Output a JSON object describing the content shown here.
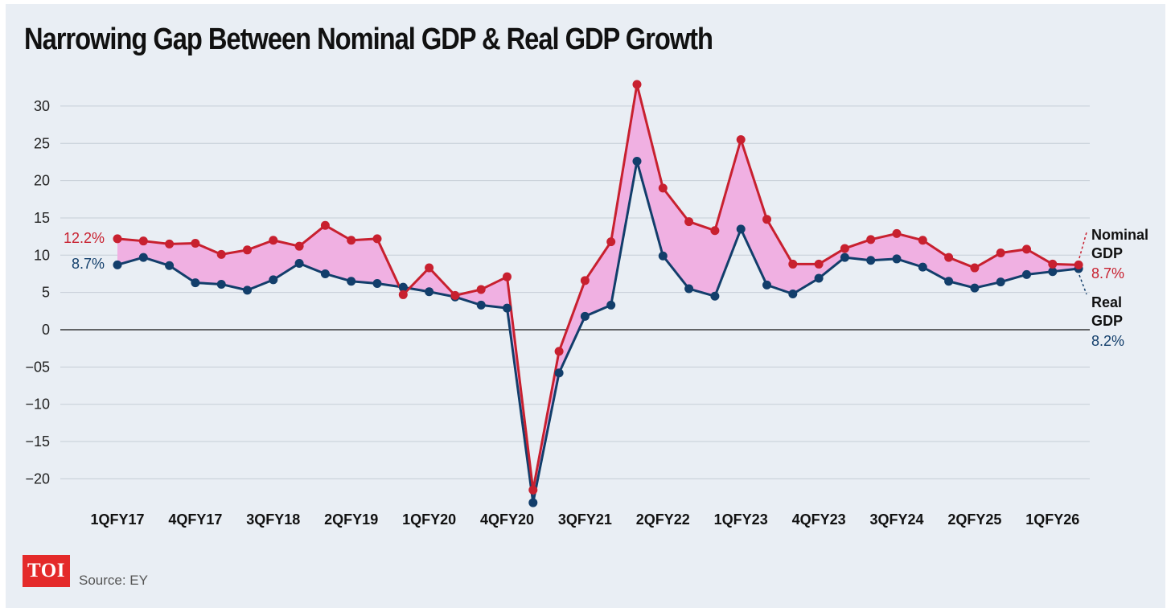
{
  "title": "Narrowing Gap Between Nominal GDP & Real GDP Growth",
  "source": "Source: EY",
  "logo": "TOI",
  "colors": {
    "nominal": "#c8202f",
    "real": "#123e6b",
    "gap_fill": "#f0b0e2",
    "background": "#e9eef4"
  },
  "chart_data": {
    "type": "line",
    "title": "Narrowing Gap Between Nominal GDP & Real GDP Growth",
    "xlabel": "",
    "ylabel": "",
    "ylim": [
      -23,
      33
    ],
    "yticks": [
      30,
      25,
      20,
      15,
      10,
      5,
      0,
      -5,
      -10,
      -15,
      -20
    ],
    "ytick_labels": [
      "30",
      "25",
      "20",
      "15",
      "10",
      "5",
      "0",
      "−05",
      "−10",
      "−15",
      "−20"
    ],
    "categories": [
      "1QFY17",
      "2QFY17",
      "3QFY17",
      "4QFY17",
      "1QFY18",
      "2QFY18",
      "3QFY18",
      "4QFY18",
      "1QFY19",
      "2QFY19",
      "3QFY19",
      "4QFY19",
      "1QFY20",
      "2QFY20",
      "3QFY20",
      "4QFY20",
      "1QFY21",
      "2QFY21",
      "3QFY21",
      "4QFY21",
      "1QFY22",
      "2QFY22",
      "3QFY22",
      "4QFY22",
      "1QFY23",
      "2QFY23",
      "3QFY23",
      "4QFY23",
      "1QFY24",
      "2QFY24",
      "3QFY24",
      "4QFY24",
      "1QFY25",
      "2QFY25",
      "3QFY25",
      "4QFY25",
      "1QFY26",
      "2QFY26"
    ],
    "x_tick_labels": [
      "1QFY17",
      "4QFY17",
      "3QFY18",
      "2QFY19",
      "1QFY20",
      "4QFY20",
      "3QFY21",
      "2QFY22",
      "1QFY23",
      "4QFY23",
      "3QFY24",
      "2QFY25",
      "1QFY26"
    ],
    "series": [
      {
        "name": "Nominal GDP",
        "values": [
          12.2,
          11.9,
          11.5,
          11.6,
          10.1,
          10.7,
          12.0,
          11.2,
          14.0,
          12.0,
          12.2,
          4.7,
          8.3,
          4.6,
          5.4,
          7.1,
          -21.5,
          -2.9,
          6.6,
          11.8,
          32.9,
          19.0,
          14.5,
          13.3,
          25.5,
          14.8,
          8.8,
          8.8,
          10.9,
          12.1,
          12.9,
          12.0,
          9.7,
          8.3,
          10.3,
          10.8,
          8.8,
          8.7
        ],
        "start_label": "12.2%",
        "end_label_line1": "Nominal",
        "end_label_line2": "GDP",
        "end_value_label": "8.7%"
      },
      {
        "name": "Real GDP",
        "values": [
          8.7,
          9.7,
          8.6,
          6.3,
          6.1,
          5.3,
          6.7,
          8.9,
          7.5,
          6.5,
          6.2,
          5.7,
          5.1,
          4.4,
          3.3,
          2.9,
          -23.2,
          -5.8,
          1.8,
          3.3,
          22.6,
          9.9,
          5.5,
          4.5,
          13.5,
          6.0,
          4.8,
          6.9,
          9.7,
          9.3,
          9.5,
          8.4,
          6.5,
          5.6,
          6.4,
          7.4,
          7.8,
          8.2
        ],
        "start_label": "8.7%",
        "end_label_line1": "Real",
        "end_label_line2": "GDP",
        "end_value_label": "8.2%"
      }
    ]
  }
}
